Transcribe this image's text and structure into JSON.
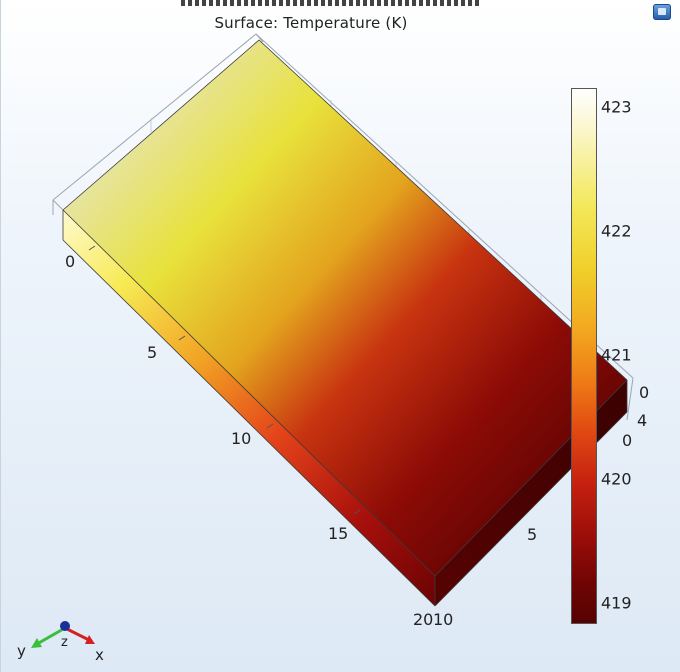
{
  "plot": {
    "title": "Surface: Temperature (K)"
  },
  "axis_ticks": {
    "y_axis": [
      "0",
      "5",
      "10",
      "15",
      "20"
    ],
    "x_axis": [
      "10",
      "5",
      "0"
    ],
    "z_axis": [
      "0",
      "4"
    ]
  },
  "legend": {
    "ticks": [
      "423",
      "422",
      "421",
      "420",
      "419"
    ]
  },
  "triad": {
    "y_label": "y",
    "z_label": "z",
    "x_label": "x"
  },
  "icons": {
    "view_icon": "camera-view-icon"
  },
  "colors": {
    "hot": "#ffffff",
    "yellow": "#f3e85a",
    "orange": "#ee7a16",
    "red": "#c52010",
    "dark_red": "#560202",
    "axis_y": "#3bbf3b",
    "axis_z": "#1a2f9a",
    "axis_x": "#d42020"
  }
}
